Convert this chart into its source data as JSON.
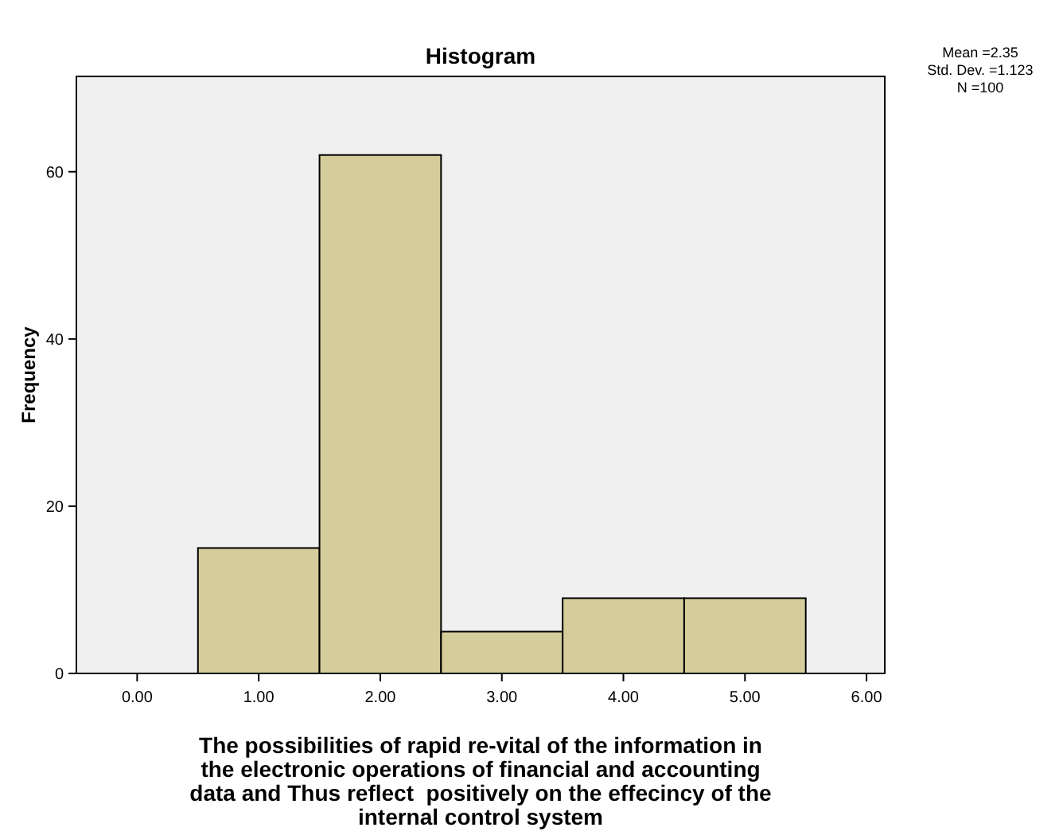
{
  "chart_data": {
    "type": "histogram",
    "title": "Histogram",
    "xlabel": "The possibilities of rapid re-vital of the information in\nthe electronic operations of financial and accounting\ndata and Thus reflect  positively on the effecincy of the\ninternal control system",
    "ylabel": "Frequency",
    "bins": [
      0.5,
      1.5,
      2.5,
      3.5,
      4.5,
      5.5
    ],
    "values": [
      15,
      62,
      5,
      9,
      9
    ],
    "color": "#d4cc9a",
    "xlim": [
      -0.5,
      6.15
    ],
    "ylim": [
      0,
      71.4
    ],
    "xticks": [
      {
        "value": 0,
        "label": "0.00"
      },
      {
        "value": 1,
        "label": "1.00"
      },
      {
        "value": 2,
        "label": "2.00"
      },
      {
        "value": 3,
        "label": "3.00"
      },
      {
        "value": 4,
        "label": "4.00"
      },
      {
        "value": 5,
        "label": "5.00"
      },
      {
        "value": 6,
        "label": "6.00"
      }
    ],
    "yticks": [
      0,
      20,
      40,
      60
    ],
    "annotations": [
      "Mean =2.35",
      "Std. Dev. =1.123",
      "N =100"
    ],
    "grid": false
  }
}
